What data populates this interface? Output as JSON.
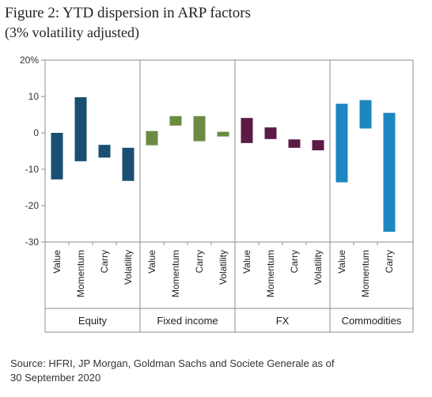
{
  "title": {
    "line1": "Figure 2: YTD dispersion in ARP factors",
    "line2": "(3% volatility adjusted)"
  },
  "source": {
    "line1": "Source: HFRI, JP Morgan, Goldman Sachs and Societe Generale as of",
    "line2": "30 September 2020"
  },
  "chart_data": {
    "type": "bar",
    "subtype": "floating-range",
    "ylim": [
      -30,
      20
    ],
    "yticks": [
      {
        "value": 20,
        "label": "20%"
      },
      {
        "value": 10,
        "label": "10"
      },
      {
        "value": 0,
        "label": "0"
      },
      {
        "value": -10,
        "label": "-10"
      },
      {
        "value": -20,
        "label": "-20"
      },
      {
        "value": -30,
        "label": "-30"
      }
    ],
    "grid": false,
    "legend": "none",
    "groups": [
      {
        "name": "Equity",
        "color": "#1a4f72",
        "factors": [
          {
            "label": "Value",
            "low": -12.8,
            "high": 0
          },
          {
            "label": "Momentum",
            "low": -7.8,
            "high": 9.8
          },
          {
            "label": "Carry",
            "low": -6.8,
            "high": -3.3
          },
          {
            "label": "Volatility",
            "low": -13.2,
            "high": -4.1
          }
        ]
      },
      {
        "name": "Fixed income",
        "color": "#6b8b43",
        "factors": [
          {
            "label": "Value",
            "low": -3.4,
            "high": 0.5
          },
          {
            "label": "Momentum",
            "low": 2.0,
            "high": 4.6
          },
          {
            "label": "Carry",
            "low": -2.3,
            "high": 4.6
          },
          {
            "label": "Volatility",
            "low": -1.0,
            "high": 0.3
          }
        ]
      },
      {
        "name": "FX",
        "color": "#5b1b45",
        "factors": [
          {
            "label": "Value",
            "low": -2.8,
            "high": 4.1
          },
          {
            "label": "Momentum",
            "low": -1.7,
            "high": 1.5
          },
          {
            "label": "Carry",
            "low": -4.1,
            "high": -1.8
          },
          {
            "label": "Volatility",
            "low": -4.8,
            "high": -2.0
          }
        ]
      },
      {
        "name": "Commodities",
        "color": "#1c86c0",
        "factors": [
          {
            "label": "Value",
            "low": -13.6,
            "high": 8.0
          },
          {
            "label": "Momentum",
            "low": 1.2,
            "high": 9.0
          },
          {
            "label": "Carry",
            "low": -27.2,
            "high": 5.5
          }
        ]
      }
    ]
  }
}
